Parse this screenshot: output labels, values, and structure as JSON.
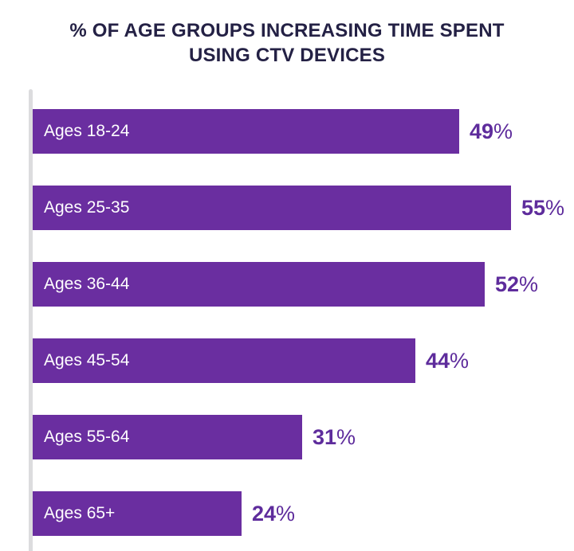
{
  "chart_data": {
    "type": "bar",
    "orientation": "horizontal",
    "title": "% OF AGE GROUPS INCREASING TIME SPENT USING CTV DEVICES",
    "categories": [
      "Ages 18-24",
      "Ages 25-35",
      "Ages 36-44",
      "Ages 45-54",
      "Ages 55-64",
      "Ages 65+"
    ],
    "values": [
      49,
      55,
      52,
      44,
      31,
      24
    ],
    "value_suffix": "%",
    "xlim": [
      0,
      55
    ],
    "grid": false,
    "legend": false,
    "bar_color": "#6A2EA0",
    "value_label_color": "#5E2C9C",
    "title_color": "#242145",
    "axis_line_color": "#DCDCDE",
    "bar_label_color": "#FFFFFF",
    "background_color": "#FFFFFF"
  }
}
